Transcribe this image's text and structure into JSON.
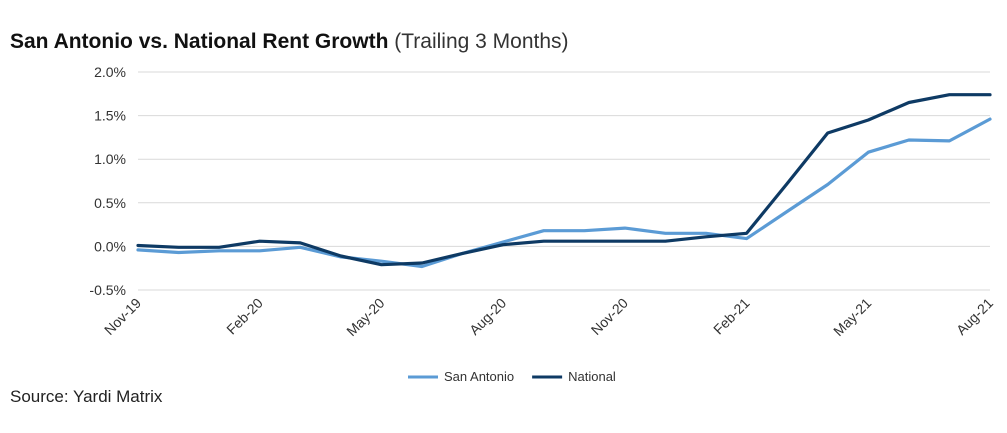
{
  "title": "San Antonio vs. National Rent Growth",
  "subtitle": "(Trailing 3 Months)",
  "source": "Source: Yardi Matrix",
  "chart_data": {
    "type": "line",
    "title": "San Antonio vs. National Rent Growth",
    "subtitle": "(Trailing 3 Months)",
    "xlabel": "",
    "ylabel": "",
    "ylim": [
      -0.5,
      2.0
    ],
    "yticks": [
      -0.5,
      0.0,
      0.5,
      1.0,
      1.5,
      2.0
    ],
    "ytick_labels": [
      "-0.5%",
      "0.0%",
      "0.5%",
      "1.0%",
      "1.5%",
      "2.0%"
    ],
    "x": [
      "Nov-19",
      "Dec-19",
      "Jan-20",
      "Feb-20",
      "Mar-20",
      "Apr-20",
      "May-20",
      "Jun-20",
      "Jul-20",
      "Aug-20",
      "Sep-20",
      "Oct-20",
      "Nov-20",
      "Dec-20",
      "Jan-21",
      "Feb-21",
      "Mar-21",
      "Apr-21",
      "May-21",
      "Jun-21",
      "Jul-21",
      "Aug-21"
    ],
    "xtick_labels": [
      "Nov-19",
      "Feb-20",
      "May-20",
      "Aug-20",
      "Nov-20",
      "Feb-21",
      "May-21",
      "Aug-21"
    ],
    "grid": true,
    "legend": "bottom-center",
    "series": [
      {
        "name": "San Antonio",
        "color": "#5b9bd5",
        "values": [
          -0.04,
          -0.07,
          -0.05,
          -0.05,
          -0.01,
          -0.12,
          -0.17,
          -0.23,
          -0.08,
          0.05,
          0.18,
          0.18,
          0.21,
          0.15,
          0.15,
          0.09,
          0.4,
          0.71,
          1.08,
          1.22,
          1.21,
          1.46
        ]
      },
      {
        "name": "National",
        "color": "#0e3a64",
        "values": [
          0.01,
          -0.01,
          -0.01,
          0.06,
          0.04,
          -0.11,
          -0.21,
          -0.19,
          -0.08,
          0.02,
          0.06,
          0.06,
          0.06,
          0.06,
          0.11,
          0.15,
          0.72,
          1.3,
          1.45,
          1.65,
          1.74,
          1.74
        ]
      }
    ]
  }
}
